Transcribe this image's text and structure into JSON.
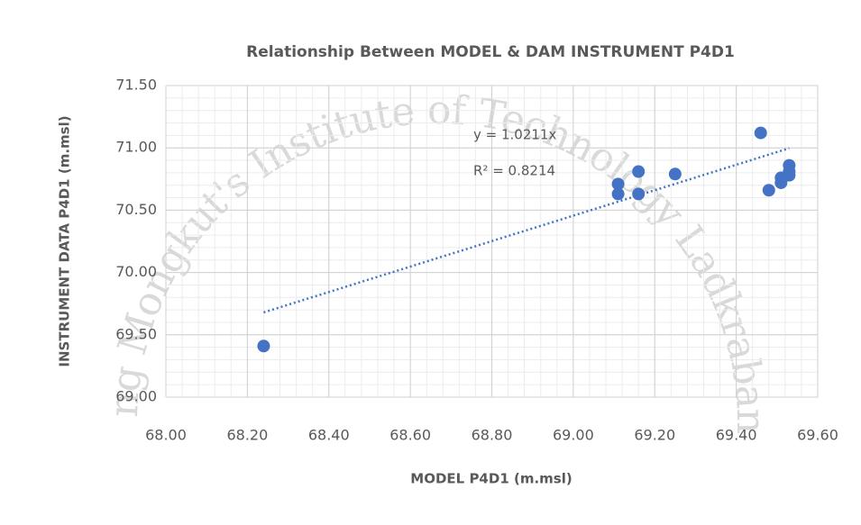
{
  "chart_data": {
    "type": "scatter",
    "title": "Relationship Between MODEL & DAM INSTRUMENT P4D1",
    "x_label": "MODEL P4D1 (m.msl)",
    "y_label": "INSTRUMENT DATA P4D1 (m.msl)",
    "watermark": "King Mongkut's Institute of Technology Ladkrabang",
    "x": [
      68.24,
      69.11,
      69.11,
      69.16,
      69.16,
      69.25,
      69.46,
      69.48,
      69.51,
      69.51,
      69.53,
      69.53,
      69.53
    ],
    "series": [
      {
        "name": "P4D1",
        "color": "#4472c4",
        "values": [
          69.41,
          70.71,
          70.63,
          70.81,
          70.63,
          70.79,
          71.12,
          70.66,
          70.76,
          70.72,
          70.86,
          70.81,
          70.78
        ]
      }
    ],
    "trendline": {
      "slope": 1.0211,
      "equation": "y = 1.0211x",
      "r2": "R² = 0.8214",
      "color": "#4472c4"
    },
    "xlim": [
      68,
      69.6
    ],
    "xticks": [
      {
        "value": 68,
        "label": "68.00"
      },
      {
        "value": 68.2,
        "label": "68.20"
      },
      {
        "value": 68.4,
        "label": "68.40"
      },
      {
        "value": 68.6,
        "label": "68.60"
      },
      {
        "value": 68.8,
        "label": "68.80"
      },
      {
        "value": 69,
        "label": "69.00"
      },
      {
        "value": 69.2,
        "label": "69.20"
      },
      {
        "value": 69.4,
        "label": "69.40"
      },
      {
        "value": 69.6,
        "label": "69.60"
      }
    ],
    "ylim": [
      69,
      71.5
    ],
    "yticks": [
      {
        "value": 69,
        "label": "69.00"
      },
      {
        "value": 69.5,
        "label": "69.50"
      },
      {
        "value": 70,
        "label": "70.00"
      },
      {
        "value": 70.5,
        "label": "70.50"
      },
      {
        "value": 71,
        "label": "71.00"
      },
      {
        "value": 71.5,
        "label": "71.50"
      }
    ],
    "grid": true,
    "minor_grid": true
  }
}
